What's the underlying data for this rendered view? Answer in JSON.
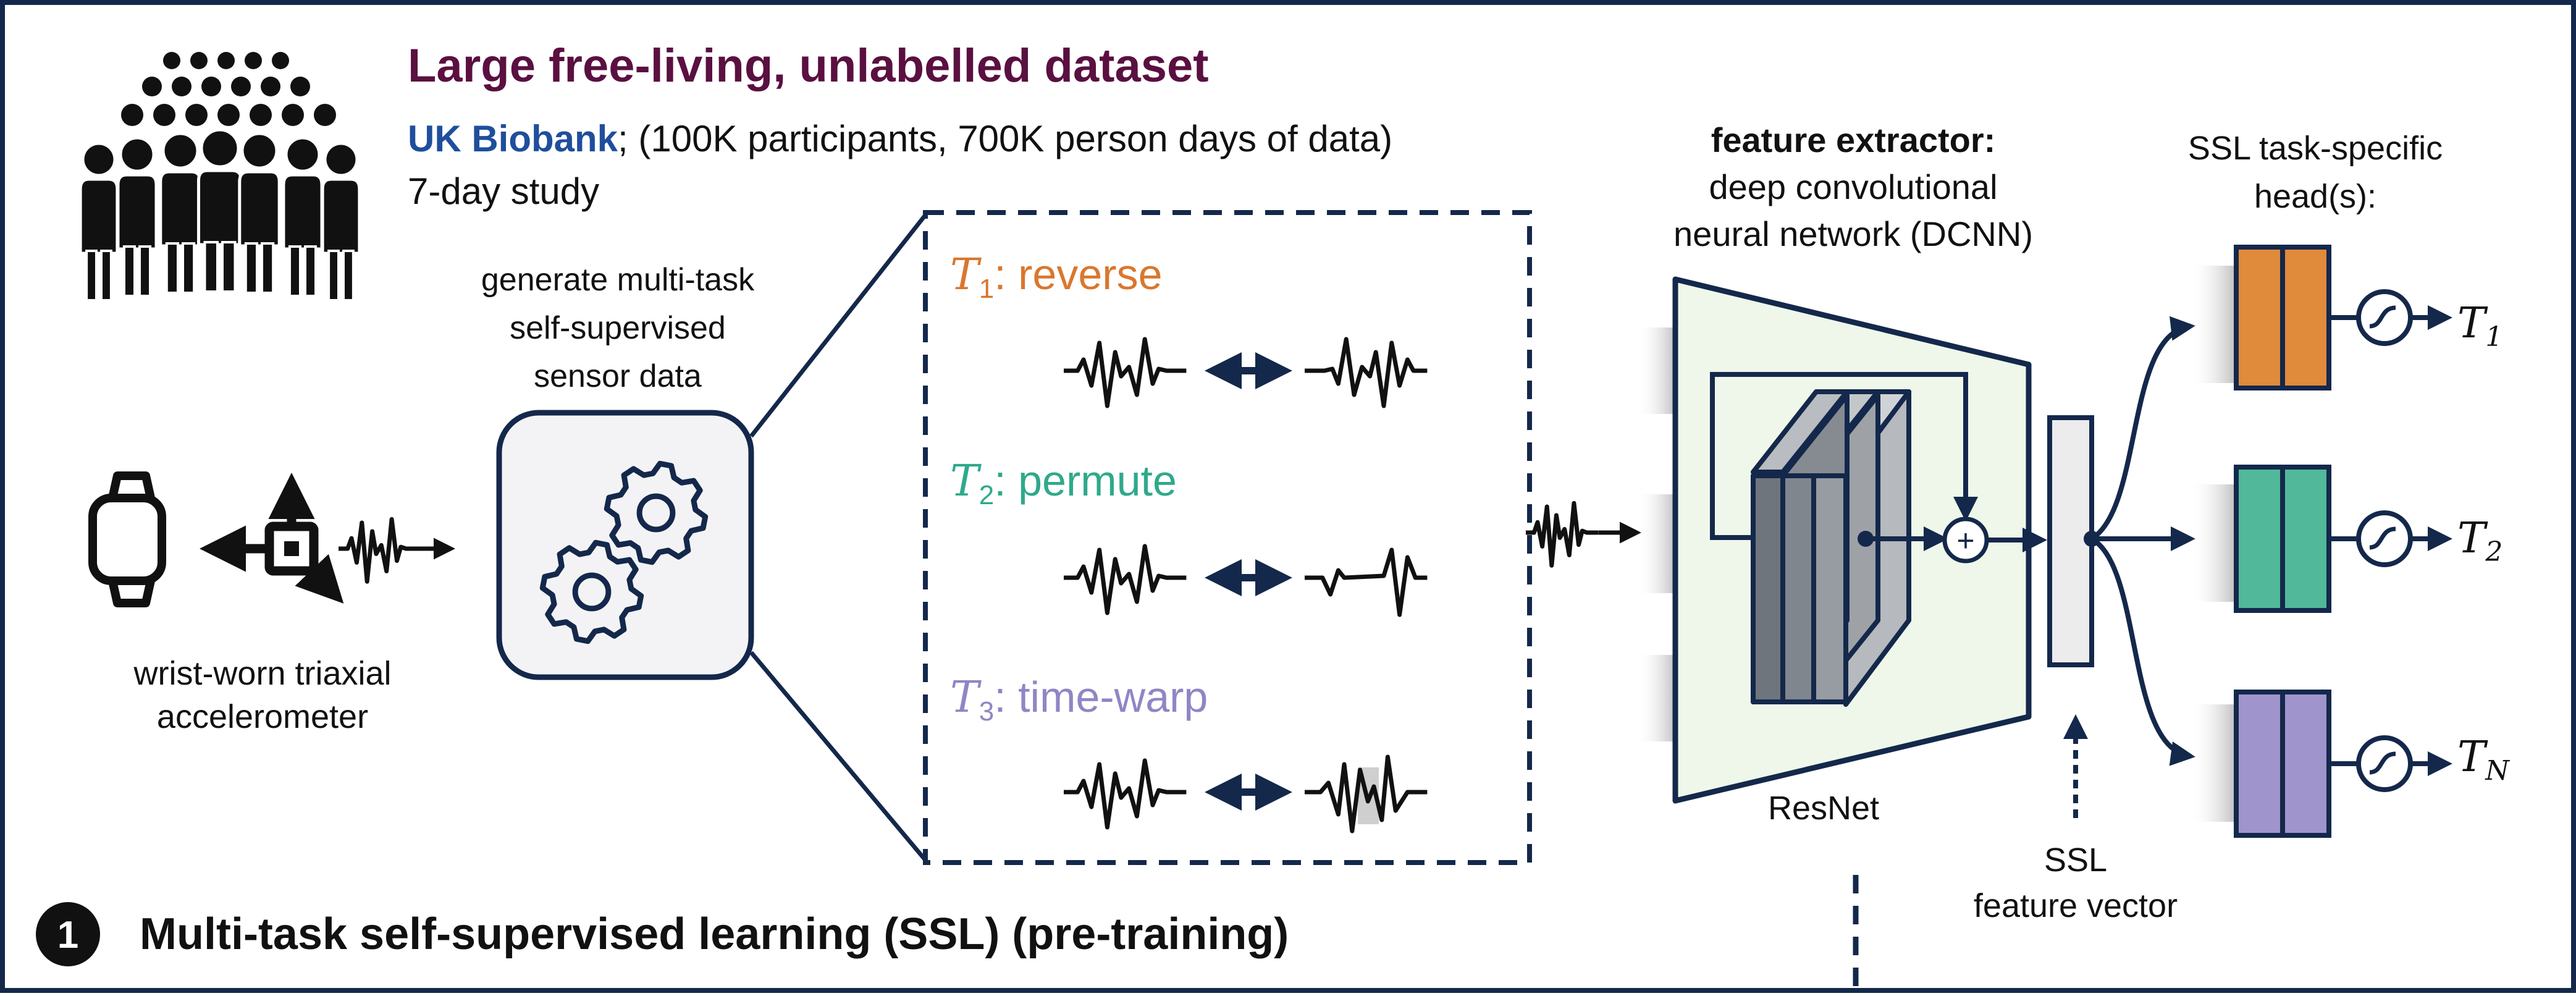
{
  "colors": {
    "navy": "#14284b",
    "maroon": "#5a1040",
    "biobank_blue": "#1f4e9c",
    "orange": "#d9772e",
    "teal": "#2fa98b",
    "lavender": "#8f86c4",
    "head_orange": "#e08a3c",
    "head_teal": "#52b89a",
    "head_purple": "#9f95cc",
    "trap_fill": "#eef7ea",
    "vector_fill": "#ececec"
  },
  "dataset": {
    "title": "Large free-living, unlabelled dataset",
    "source_name": "UK Biobank",
    "source_detail": "; (100K participants, 700K person days of data)",
    "study": "7-day study"
  },
  "device": {
    "label_line1": "wrist-worn triaxial",
    "label_line2": "accelerometer"
  },
  "generator": {
    "line1": "generate multi-task",
    "line2": "self-supervised",
    "line3": "sensor data"
  },
  "tasks": [
    {
      "symbol": "T",
      "subscript": "1",
      "name": ": reverse",
      "color": "#d9772e"
    },
    {
      "symbol": "T",
      "subscript": "2",
      "name": ": permute",
      "color": "#2fa98b"
    },
    {
      "symbol": "T",
      "subscript": "3",
      "name": ": time-warp",
      "color": "#8f86c4"
    }
  ],
  "feature_extractor": {
    "title": "feature extractor:",
    "line2": "deep convolutional",
    "line3": "neural network (DCNN)",
    "backbone": "ResNet",
    "plus": "+"
  },
  "feature_vector": {
    "line1": "SSL",
    "line2": "feature vector"
  },
  "heads": {
    "title_line1": "SSL task-specific",
    "title_line2": "head(s):",
    "outputs": [
      {
        "symbol": "T",
        "subscript": "1"
      },
      {
        "symbol": "T",
        "subscript": "2"
      },
      {
        "symbol": "T",
        "subscript": "N"
      }
    ]
  },
  "footer": {
    "step_number": "1",
    "title": "Multi-task self-supervised learning (SSL) (pre-training)"
  }
}
